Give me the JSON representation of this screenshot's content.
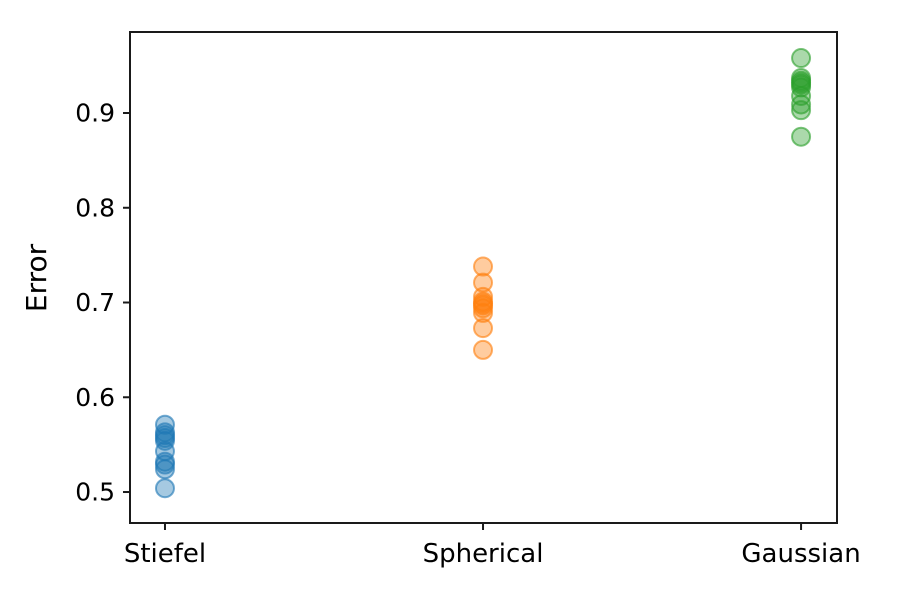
{
  "chart_data": {
    "type": "scatter",
    "title": "",
    "xlabel": "",
    "ylabel": "Error",
    "categories": [
      "Stiefel",
      "Spherical",
      "Gaussian"
    ],
    "category_positions": [
      0,
      1,
      2
    ],
    "xlim": [
      -0.11,
      2.113
    ],
    "ylim": [
      0.4673,
      0.9855
    ],
    "yticks": [
      0.5,
      0.6,
      0.7,
      0.8,
      0.9
    ],
    "ytick_labels": [
      "0.5",
      "0.6",
      "0.7",
      "0.8",
      "0.9"
    ],
    "grid": false,
    "legend": "none",
    "marker": {
      "shape": "circle",
      "radius": 9,
      "fill_alpha": 0.4,
      "edge_alpha": 0.62,
      "edge_width": 2
    },
    "series": [
      {
        "name": "Stiefel",
        "color": "#1f77b4",
        "x_category": 0,
        "values": [
          0.571,
          0.563,
          0.56,
          0.557,
          0.554,
          0.543,
          0.532,
          0.529,
          0.524,
          0.504
        ]
      },
      {
        "name": "Spherical",
        "color": "#ff7f0e",
        "x_category": 1,
        "values": [
          0.738,
          0.721,
          0.706,
          0.701,
          0.699,
          0.697,
          0.694,
          0.689,
          0.673,
          0.65
        ]
      },
      {
        "name": "Gaussian",
        "color": "#2ca02c",
        "x_category": 2,
        "values": [
          0.958,
          0.937,
          0.934,
          0.932,
          0.93,
          0.927,
          0.918,
          0.909,
          0.903,
          0.875
        ]
      }
    ],
    "axes_style": {
      "spine_color": "#1a1a1a",
      "tick_color": "#1a1a1a",
      "tick_length": 7,
      "background": "#ffffff"
    }
  }
}
